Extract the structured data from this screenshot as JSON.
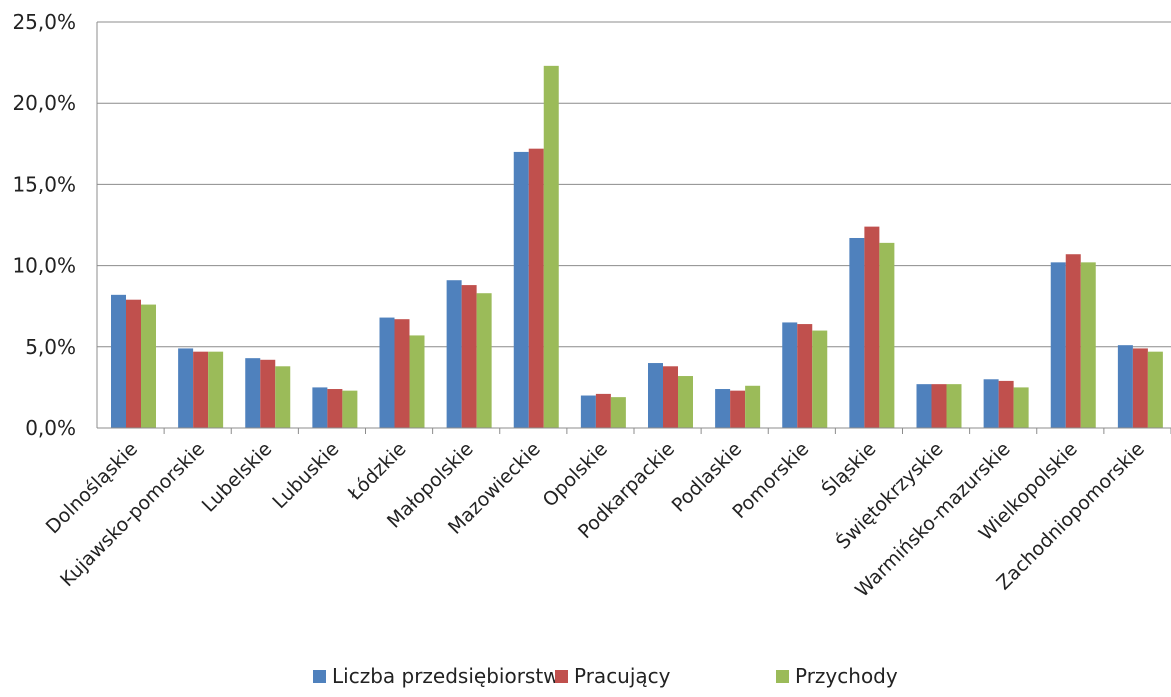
{
  "chart_data": {
    "type": "bar",
    "title": "",
    "xlabel": "",
    "ylabel": "",
    "ylim": [
      0,
      25
    ],
    "y_tick_values": [
      0,
      5,
      10,
      15,
      20,
      25
    ],
    "y_tick_labels": [
      "0,0%",
      "5,0%",
      "10,0%",
      "15,0%",
      "20,0%",
      "25,0%"
    ],
    "grid": "horizontal",
    "legend_position": "bottom",
    "categories": [
      "Dolnośląskie",
      "Kujawsko-pomorskie",
      "Lubelskie",
      "Lubuskie",
      "Łódzkie",
      "Małopolskie",
      "Mazowieckie",
      "Opolskie",
      "Podkarpackie",
      "Podlaskie",
      "Pomorskie",
      "Śląskie",
      "Świętokrzyskie",
      "Warmińsko-mazurskie",
      "Wielkopolskie",
      "Zachodniopomorskie"
    ],
    "series": [
      {
        "name": "Liczba przedsiębiorstw",
        "color": "#4F81BD",
        "values": [
          8.2,
          4.9,
          4.3,
          2.5,
          6.8,
          9.1,
          17.0,
          2.0,
          4.0,
          2.4,
          6.5,
          11.7,
          2.7,
          3.0,
          10.2,
          5.1
        ]
      },
      {
        "name": "Pracujący",
        "color": "#C0504D",
        "values": [
          7.9,
          4.7,
          4.2,
          2.4,
          6.7,
          8.8,
          17.2,
          2.1,
          3.8,
          2.3,
          6.4,
          12.4,
          2.7,
          2.9,
          10.7,
          4.9
        ]
      },
      {
        "name": "Przychody",
        "color": "#9BBB59",
        "values": [
          7.6,
          4.7,
          3.8,
          2.3,
          5.7,
          8.3,
          22.3,
          1.9,
          3.2,
          2.6,
          6.0,
          11.4,
          2.7,
          2.5,
          10.2,
          4.7
        ]
      }
    ]
  }
}
